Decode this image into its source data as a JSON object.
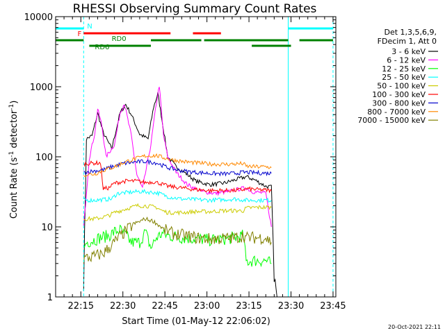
{
  "chart_data": {
    "type": "line",
    "title": "RHESSI Observing Summary Count Rates",
    "xlabel": "Start Time (01-May-12 22:06:02)",
    "ylabel_main": "Count Rate (s",
    "ylabel_sup1": "-1",
    "ylabel_mid": " detector",
    "ylabel_sup2": "-1",
    "ylabel_end": ")",
    "y_scale": "log",
    "ylim": [
      1,
      10000
    ],
    "xlim_minutes": [
      0,
      100
    ],
    "x_ticks": [
      {
        "t": 9,
        "label": "22:15"
      },
      {
        "t": 24,
        "label": "22:30"
      },
      {
        "t": 39,
        "label": "22:45"
      },
      {
        "t": 54,
        "label": "23:00"
      },
      {
        "t": 69,
        "label": "23:15"
      },
      {
        "t": 84,
        "label": "23:30"
      },
      {
        "t": 99,
        "label": "23:45"
      }
    ],
    "y_ticks": [
      {
        "v": 1,
        "label": "1"
      },
      {
        "v": 10,
        "label": "10"
      },
      {
        "v": 100,
        "label": "100"
      },
      {
        "v": 1000,
        "label": "1000"
      },
      {
        "v": 10000,
        "label": "10000"
      }
    ],
    "legend_header": [
      "Det 1,3,5,6,9,",
      "FDecim 1, Att 0"
    ],
    "series": [
      {
        "name": "3 - 6 keV",
        "color": "#000000",
        "points": [
          [
            10,
            1.5
          ],
          [
            11,
            180
          ],
          [
            13,
            200
          ],
          [
            15,
            420
          ],
          [
            17,
            220
          ],
          [
            20,
            130
          ],
          [
            23,
            420
          ],
          [
            25,
            560
          ],
          [
            27,
            400
          ],
          [
            30,
            210
          ],
          [
            33,
            180
          ],
          [
            35,
            520
          ],
          [
            36.5,
            800
          ],
          [
            38,
            330
          ],
          [
            40,
            100
          ],
          [
            43,
            72
          ],
          [
            46,
            60
          ],
          [
            50,
            45
          ],
          [
            55,
            40
          ],
          [
            60,
            42
          ],
          [
            65,
            48
          ],
          [
            68,
            52
          ],
          [
            71,
            47
          ],
          [
            75,
            38
          ],
          [
            77,
            37
          ],
          [
            78,
            2
          ],
          [
            79,
            1
          ]
        ]
      },
      {
        "name": "6 - 12 keV",
        "color": "#ff00ff",
        "points": [
          [
            10,
            10
          ],
          [
            12,
            95
          ],
          [
            14,
            220
          ],
          [
            15,
            480
          ],
          [
            16.5,
            280
          ],
          [
            18,
            100
          ],
          [
            21,
            150
          ],
          [
            23,
            420
          ],
          [
            24.5,
            580
          ],
          [
            27,
            200
          ],
          [
            29,
            55
          ],
          [
            31,
            35
          ],
          [
            34,
            150
          ],
          [
            36,
            600
          ],
          [
            37,
            1050
          ],
          [
            38.5,
            200
          ],
          [
            40,
            100
          ],
          [
            43,
            60
          ],
          [
            47,
            40
          ],
          [
            52,
            32
          ],
          [
            57,
            30
          ],
          [
            62,
            32
          ],
          [
            66,
            35
          ],
          [
            68,
            36
          ],
          [
            70,
            32
          ],
          [
            75,
            30
          ],
          [
            77,
            10
          ]
        ]
      },
      {
        "name": "12 - 25 keV",
        "color": "#00ff00",
        "points": [
          [
            10,
            5
          ],
          [
            11,
            6
          ],
          [
            16,
            7
          ],
          [
            19,
            7.5
          ],
          [
            21,
            8.5
          ],
          [
            23,
            9
          ],
          [
            25,
            7.5
          ],
          [
            27,
            6
          ],
          [
            30,
            6
          ],
          [
            32,
            8.5
          ],
          [
            34,
            5
          ],
          [
            36,
            7
          ],
          [
            38,
            8
          ],
          [
            40,
            7.5
          ],
          [
            45,
            7
          ],
          [
            50,
            6.8
          ],
          [
            55,
            6.5
          ],
          [
            60,
            6.7
          ],
          [
            64,
            7
          ],
          [
            67,
            7.5
          ],
          [
            68,
            3.2
          ],
          [
            71,
            3.3
          ],
          [
            75,
            3.3
          ],
          [
            77,
            3
          ]
        ]
      },
      {
        "name": "25 - 50 keV",
        "color": "#00ffff",
        "points": [
          [
            10,
            24
          ],
          [
            14,
            24
          ],
          [
            20,
            25
          ],
          [
            22,
            30
          ],
          [
            26,
            31
          ],
          [
            30,
            32
          ],
          [
            35,
            31
          ],
          [
            37,
            30
          ],
          [
            40,
            27
          ],
          [
            45,
            25
          ],
          [
            50,
            24.5
          ],
          [
            55,
            24
          ],
          [
            60,
            24.5
          ],
          [
            64,
            25
          ],
          [
            68,
            24
          ],
          [
            71,
            24
          ],
          [
            75,
            24
          ],
          [
            77,
            24
          ]
        ]
      },
      {
        "name": "50 - 100 keV",
        "color": "#cccc00",
        "points": [
          [
            10,
            13
          ],
          [
            14,
            13
          ],
          [
            16,
            13.5
          ],
          [
            19,
            14.5
          ],
          [
            21,
            16
          ],
          [
            25,
            18
          ],
          [
            29,
            20
          ],
          [
            32,
            20
          ],
          [
            36,
            19
          ],
          [
            38,
            17
          ],
          [
            40,
            16
          ],
          [
            45,
            16
          ],
          [
            50,
            16.5
          ],
          [
            55,
            16.5
          ],
          [
            60,
            17
          ],
          [
            64,
            17
          ],
          [
            67,
            17
          ],
          [
            68,
            18.5
          ],
          [
            72,
            19
          ],
          [
            77,
            19
          ]
        ]
      },
      {
        "name": "100 - 300 keV",
        "color": "#ff0000",
        "points": [
          [
            10,
            80
          ],
          [
            16,
            82
          ],
          [
            17,
            35
          ],
          [
            19,
            36
          ],
          [
            21,
            42
          ],
          [
            25,
            45
          ],
          [
            29,
            45
          ],
          [
            32,
            43
          ],
          [
            35,
            44
          ],
          [
            37,
            42
          ],
          [
            40,
            38
          ],
          [
            45,
            36
          ],
          [
            50,
            34
          ],
          [
            55,
            33
          ],
          [
            60,
            33
          ],
          [
            64,
            33
          ],
          [
            67,
            34
          ],
          [
            68,
            35
          ],
          [
            72,
            34
          ],
          [
            77,
            33
          ]
        ]
      },
      {
        "name": "300 - 800 keV",
        "color": "#0000cc",
        "points": [
          [
            10,
            60
          ],
          [
            14,
            63
          ],
          [
            17,
            65
          ],
          [
            20,
            72
          ],
          [
            24,
            80
          ],
          [
            28,
            84
          ],
          [
            32,
            86
          ],
          [
            36,
            82
          ],
          [
            40,
            70
          ],
          [
            45,
            63
          ],
          [
            50,
            60
          ],
          [
            55,
            58
          ],
          [
            60,
            57
          ],
          [
            64,
            58
          ],
          [
            67,
            60
          ],
          [
            68,
            60
          ],
          [
            72,
            59
          ],
          [
            77,
            58
          ]
        ]
      },
      {
        "name": "800 - 7000 keV",
        "color": "#ff8800",
        "points": [
          [
            10,
            55
          ],
          [
            14,
            57
          ],
          [
            17,
            64
          ],
          [
            21,
            72
          ],
          [
            25,
            85
          ],
          [
            29,
            95
          ],
          [
            32,
            103
          ],
          [
            36,
            104
          ],
          [
            39,
            96
          ],
          [
            42,
            90
          ],
          [
            46,
            85
          ],
          [
            50,
            82
          ],
          [
            55,
            79
          ],
          [
            60,
            78
          ],
          [
            64,
            79
          ],
          [
            67,
            80
          ],
          [
            68,
            73
          ],
          [
            72,
            72
          ],
          [
            75,
            72
          ],
          [
            77,
            70
          ]
        ]
      },
      {
        "name": "7000 - 15000 keV",
        "color": "#808000",
        "points": [
          [
            10,
            3.5
          ],
          [
            14,
            3.8
          ],
          [
            17,
            4.2
          ],
          [
            20,
            5.5
          ],
          [
            24,
            8
          ],
          [
            28,
            11
          ],
          [
            32,
            13
          ],
          [
            35,
            12
          ],
          [
            39,
            9
          ],
          [
            42,
            8
          ],
          [
            46,
            7.5
          ],
          [
            50,
            7
          ],
          [
            55,
            6.7
          ],
          [
            60,
            6.8
          ],
          [
            64,
            7
          ],
          [
            67,
            7.5
          ],
          [
            68,
            7
          ],
          [
            72,
            7
          ],
          [
            75,
            7
          ],
          [
            77,
            6
          ]
        ]
      }
    ],
    "flags": [
      {
        "label": "N",
        "color": "#00ffff",
        "level": 1,
        "segments": [
          [
            0,
            10
          ],
          [
            83,
            99
          ]
        ]
      },
      {
        "label": "F",
        "color": "#ff0000",
        "level": 2,
        "segments": [
          [
            10,
            41
          ],
          [
            49,
            59
          ]
        ]
      },
      {
        "label": "RD0",
        "color": "#008000",
        "level": 3,
        "segments": [
          [
            0,
            10
          ],
          [
            34,
            52
          ],
          [
            53,
            83
          ],
          [
            87,
            99
          ]
        ]
      },
      {
        "label": "RD6",
        "color": "#008000",
        "level": 4,
        "segments": [
          [
            12,
            34
          ],
          [
            70,
            84
          ]
        ]
      }
    ],
    "vlines": [
      {
        "t": 0,
        "color": "#00ffff",
        "style": "solid"
      },
      {
        "t": 10,
        "color": "#00ffff",
        "style": "dashed"
      },
      {
        "t": 83,
        "color": "#00ffff",
        "style": "solid"
      },
      {
        "t": 99,
        "color": "#00ffff",
        "style": "dashed"
      }
    ],
    "grid": false,
    "legend_position": "right"
  },
  "footer_stamp": "20-Oct-2021 22:11"
}
